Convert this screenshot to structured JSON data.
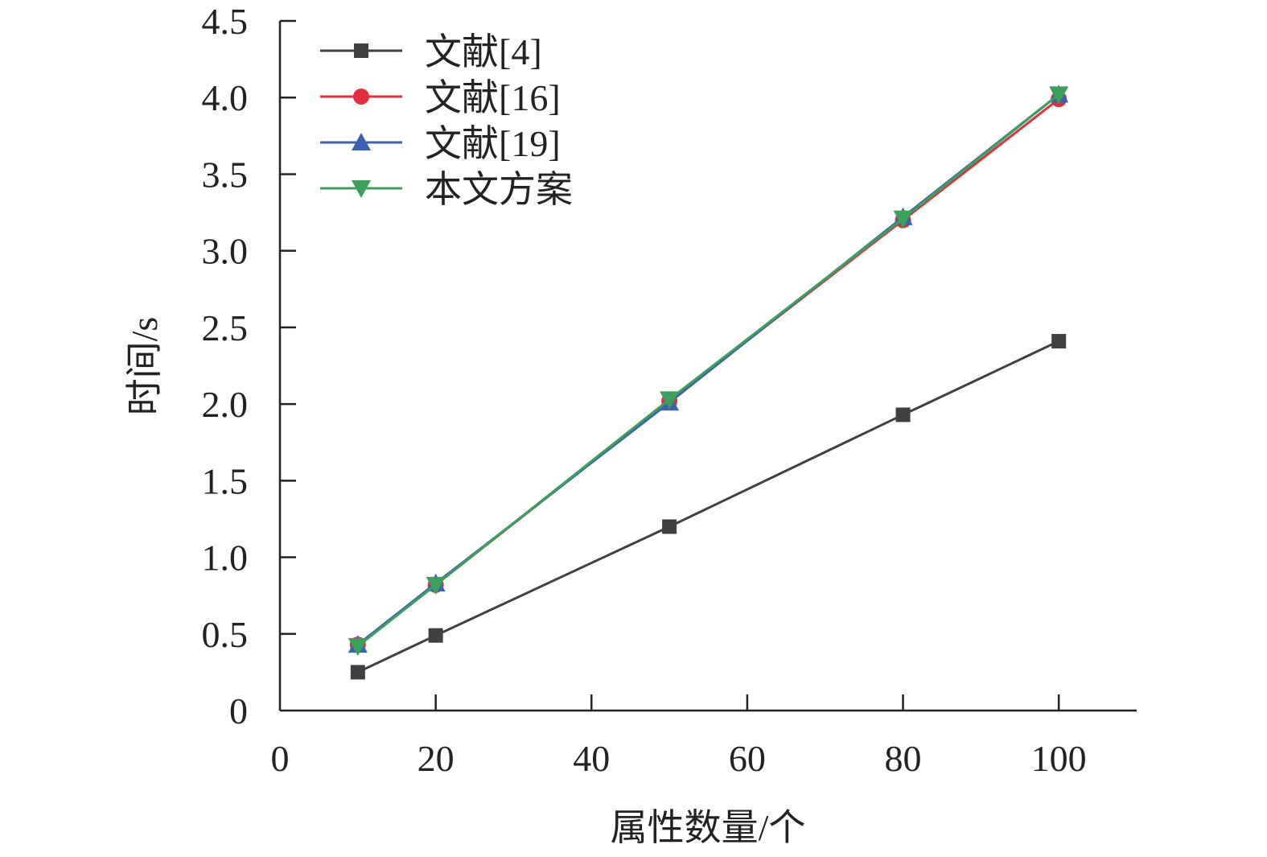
{
  "chart_data": {
    "type": "line",
    "xlabel": "属性数量/个",
    "ylabel": "时间/s",
    "xlim": [
      0,
      110
    ],
    "ylim": [
      0,
      4.5
    ],
    "x_ticks": [
      "0",
      "20",
      "40",
      "60",
      "80",
      "100"
    ],
    "y_ticks": [
      "0",
      "0.5",
      "1.0",
      "1.5",
      "2.0",
      "2.5",
      "3.0",
      "3.5",
      "4.0",
      "4.5"
    ],
    "grid": false,
    "legend_position": "top-left",
    "x": [
      10,
      20,
      50,
      80,
      100
    ],
    "series": [
      {
        "name": "文献[4]",
        "marker": "square",
        "color": "#404040",
        "values": [
          0.25,
          0.49,
          1.2,
          1.93,
          2.41
        ]
      },
      {
        "name": "文献[16]",
        "marker": "circle",
        "color": "#e03040",
        "values": [
          0.43,
          0.82,
          2.02,
          3.2,
          3.99
        ]
      },
      {
        "name": "文献[19]",
        "marker": "triangle-up",
        "color": "#3a62b0",
        "values": [
          0.43,
          0.83,
          2.01,
          3.22,
          4.02
        ]
      },
      {
        "name": "本文方案",
        "marker": "triangle-down",
        "color": "#3aa05a",
        "values": [
          0.42,
          0.82,
          2.03,
          3.21,
          4.02
        ]
      }
    ]
  }
}
